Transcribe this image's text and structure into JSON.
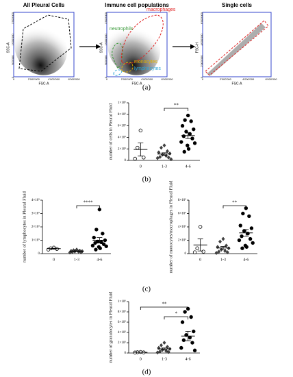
{
  "flow_panels": [
    {
      "title": "All Pleural Cells",
      "xlabel": "FSC-A",
      "ylabel": "SSC-A",
      "xticks": [
        "0",
        "2'000'000",
        "4'000'000",
        "6'000'000"
      ],
      "yticks": [
        "0",
        "500'000",
        "1'000'000",
        "1'500'000"
      ],
      "gates": []
    },
    {
      "title": "Immune cell populations",
      "xlabel": "FSC-A",
      "ylabel": "SSC-A",
      "xticks": [
        "0",
        "2'000'000",
        "4'000'000",
        "6'000'000"
      ],
      "yticks": [
        "0",
        "500'000",
        "1'000'000",
        "1'500'000"
      ],
      "gates": [
        {
          "label": "neutrophils",
          "color": "#3a9a3a"
        },
        {
          "label": "macrophages",
          "color": "#e02020"
        },
        {
          "label": "monocytes",
          "color": "#e0b000"
        },
        {
          "label": "lymphocytes",
          "color": "#2aa6d8"
        }
      ]
    },
    {
      "title": "Single cells",
      "xlabel": "FSC-A",
      "ylabel": "FSC-H",
      "xticks": [
        "0",
        "2'000'000",
        "4'000'000",
        "6'000'000"
      ],
      "yticks": [
        "0",
        "2'000'000",
        "4'000'000",
        "6'000'000"
      ],
      "gates": []
    }
  ],
  "panel_labels": [
    "(a)",
    "(b)",
    "(c)",
    "(d)"
  ],
  "chart_data": [
    {
      "type": "dotplot",
      "ylabel": "number of cells in Pleural Fluid",
      "categories": [
        "0",
        "1-3",
        "4-6"
      ],
      "markers": [
        "open-circle",
        "half-diamond",
        "filled-circle"
      ],
      "points": [
        [
          520000,
          220000,
          50000,
          30000
        ],
        [
          260000,
          220000,
          160000,
          140000,
          120000,
          100000,
          80000,
          60000,
          50000,
          40000,
          20000
        ],
        [
          780000,
          700000,
          680000,
          600000,
          540000,
          500000,
          460000,
          420000,
          380000,
          320000,
          300000,
          260000,
          200000,
          150000
        ]
      ],
      "means": [
        190000,
        110000,
        430000
      ],
      "sems": [
        115000,
        22000,
        50000
      ],
      "ylim": [
        0,
        1000000
      ],
      "yticks": [
        0,
        {
          "value": 200000,
          "label": "2×10⁵"
        },
        {
          "value": 400000,
          "label": "4×10⁵"
        },
        {
          "value": 600000,
          "label": "6×10⁵"
        },
        {
          "value": 800000,
          "label": "8×10⁵"
        },
        {
          "value": 1000000,
          "label": "1×10⁶"
        }
      ],
      "brackets": [
        {
          "text": "**",
          "groups": [
            "1-3",
            "4-6"
          ]
        }
      ]
    },
    {
      "type": "dotplot",
      "ylabel": "number of lymphocytes in Pleural Fluid",
      "categories": [
        "0",
        "1-3",
        "4-6"
      ],
      "markers": [
        "open-circle",
        "half-diamond",
        "filled-circle"
      ],
      "points": [
        [
          45000,
          40000,
          35000,
          30000
        ],
        [
          30000,
          25000,
          22000,
          20000,
          18000,
          16000,
          15000,
          12000,
          10000,
          8000
        ],
        [
          330000,
          180000,
          150000,
          120000,
          100000,
          90000,
          85000,
          80000,
          70000,
          60000,
          55000,
          50000,
          40000,
          30000
        ]
      ],
      "means": [
        37000,
        18000,
        100000
      ],
      "sems": [
        3000,
        2500,
        20000
      ],
      "ylim": [
        0,
        400000
      ],
      "yticks": [
        0,
        {
          "value": 100000,
          "label": "1×10⁵"
        },
        {
          "value": 200000,
          "label": "2×10⁵"
        },
        {
          "value": 300000,
          "label": "3×10⁵"
        },
        {
          "value": 400000,
          "label": "4×10⁵"
        }
      ],
      "brackets": [
        {
          "text": "****",
          "groups": [
            "1-3",
            "4-6"
          ]
        }
      ]
    },
    {
      "type": "dotplot",
      "ylabel": "number of monocytes/macrophages in Pleural Fluid",
      "categories": [
        "0",
        "1-3",
        "4-6"
      ],
      "markers": [
        "open-circle",
        "half-diamond",
        "filled-circle"
      ],
      "points": [
        [
          400000,
          80000,
          30000,
          20000
        ],
        [
          220000,
          180000,
          120000,
          100000,
          80000,
          60000,
          40000,
          30000,
          20000,
          10000
        ],
        [
          680000,
          600000,
          560000,
          420000,
          380000,
          340000,
          300000,
          260000,
          220000,
          200000,
          160000,
          120000,
          100000,
          80000
        ]
      ],
      "means": [
        130000,
        85000,
        310000
      ],
      "sems": [
        90000,
        22000,
        50000
      ],
      "ylim": [
        0,
        800000
      ],
      "yticks": [
        0,
        {
          "value": 200000,
          "label": "2×10⁵"
        },
        {
          "value": 400000,
          "label": "4×10⁵"
        },
        {
          "value": 600000,
          "label": "6×10⁵"
        },
        {
          "value": 800000,
          "label": "8×10⁵"
        }
      ],
      "brackets": [
        {
          "text": "**",
          "groups": [
            "1-3",
            "4-6"
          ]
        }
      ]
    },
    {
      "type": "dotplot",
      "ylabel": "number of granulocytes in Pleural Fluid",
      "categories": [
        "0",
        "1-3",
        "4-6"
      ],
      "markers": [
        "open-circle",
        "half-diamond",
        "filled-circle"
      ],
      "points": [
        [
          20000,
          15000,
          12000,
          10000
        ],
        [
          200000,
          150000,
          120000,
          100000,
          80000,
          60000,
          40000,
          30000,
          20000,
          10000
        ],
        [
          860000,
          800000,
          700000,
          600000,
          420000,
          350000,
          300000,
          250000,
          200000,
          100000,
          50000
        ]
      ],
      "means": [
        14000,
        80000,
        330000
      ],
      "sems": [
        2000,
        20000,
        90000
      ],
      "ylim": [
        0,
        1000000
      ],
      "yticks": [
        0,
        {
          "value": 200000,
          "label": "2×10⁵"
        },
        {
          "value": 400000,
          "label": "4×10⁵"
        },
        {
          "value": 600000,
          "label": "6×10⁵"
        },
        {
          "value": 800000,
          "label": "8×10⁵"
        },
        {
          "value": 1000000,
          "label": "1×10⁶"
        }
      ],
      "brackets": [
        {
          "text": "**",
          "groups": [
            "0",
            "4-6"
          ]
        },
        {
          "text": "*",
          "groups": [
            "1-3",
            "4-6"
          ]
        }
      ]
    }
  ]
}
